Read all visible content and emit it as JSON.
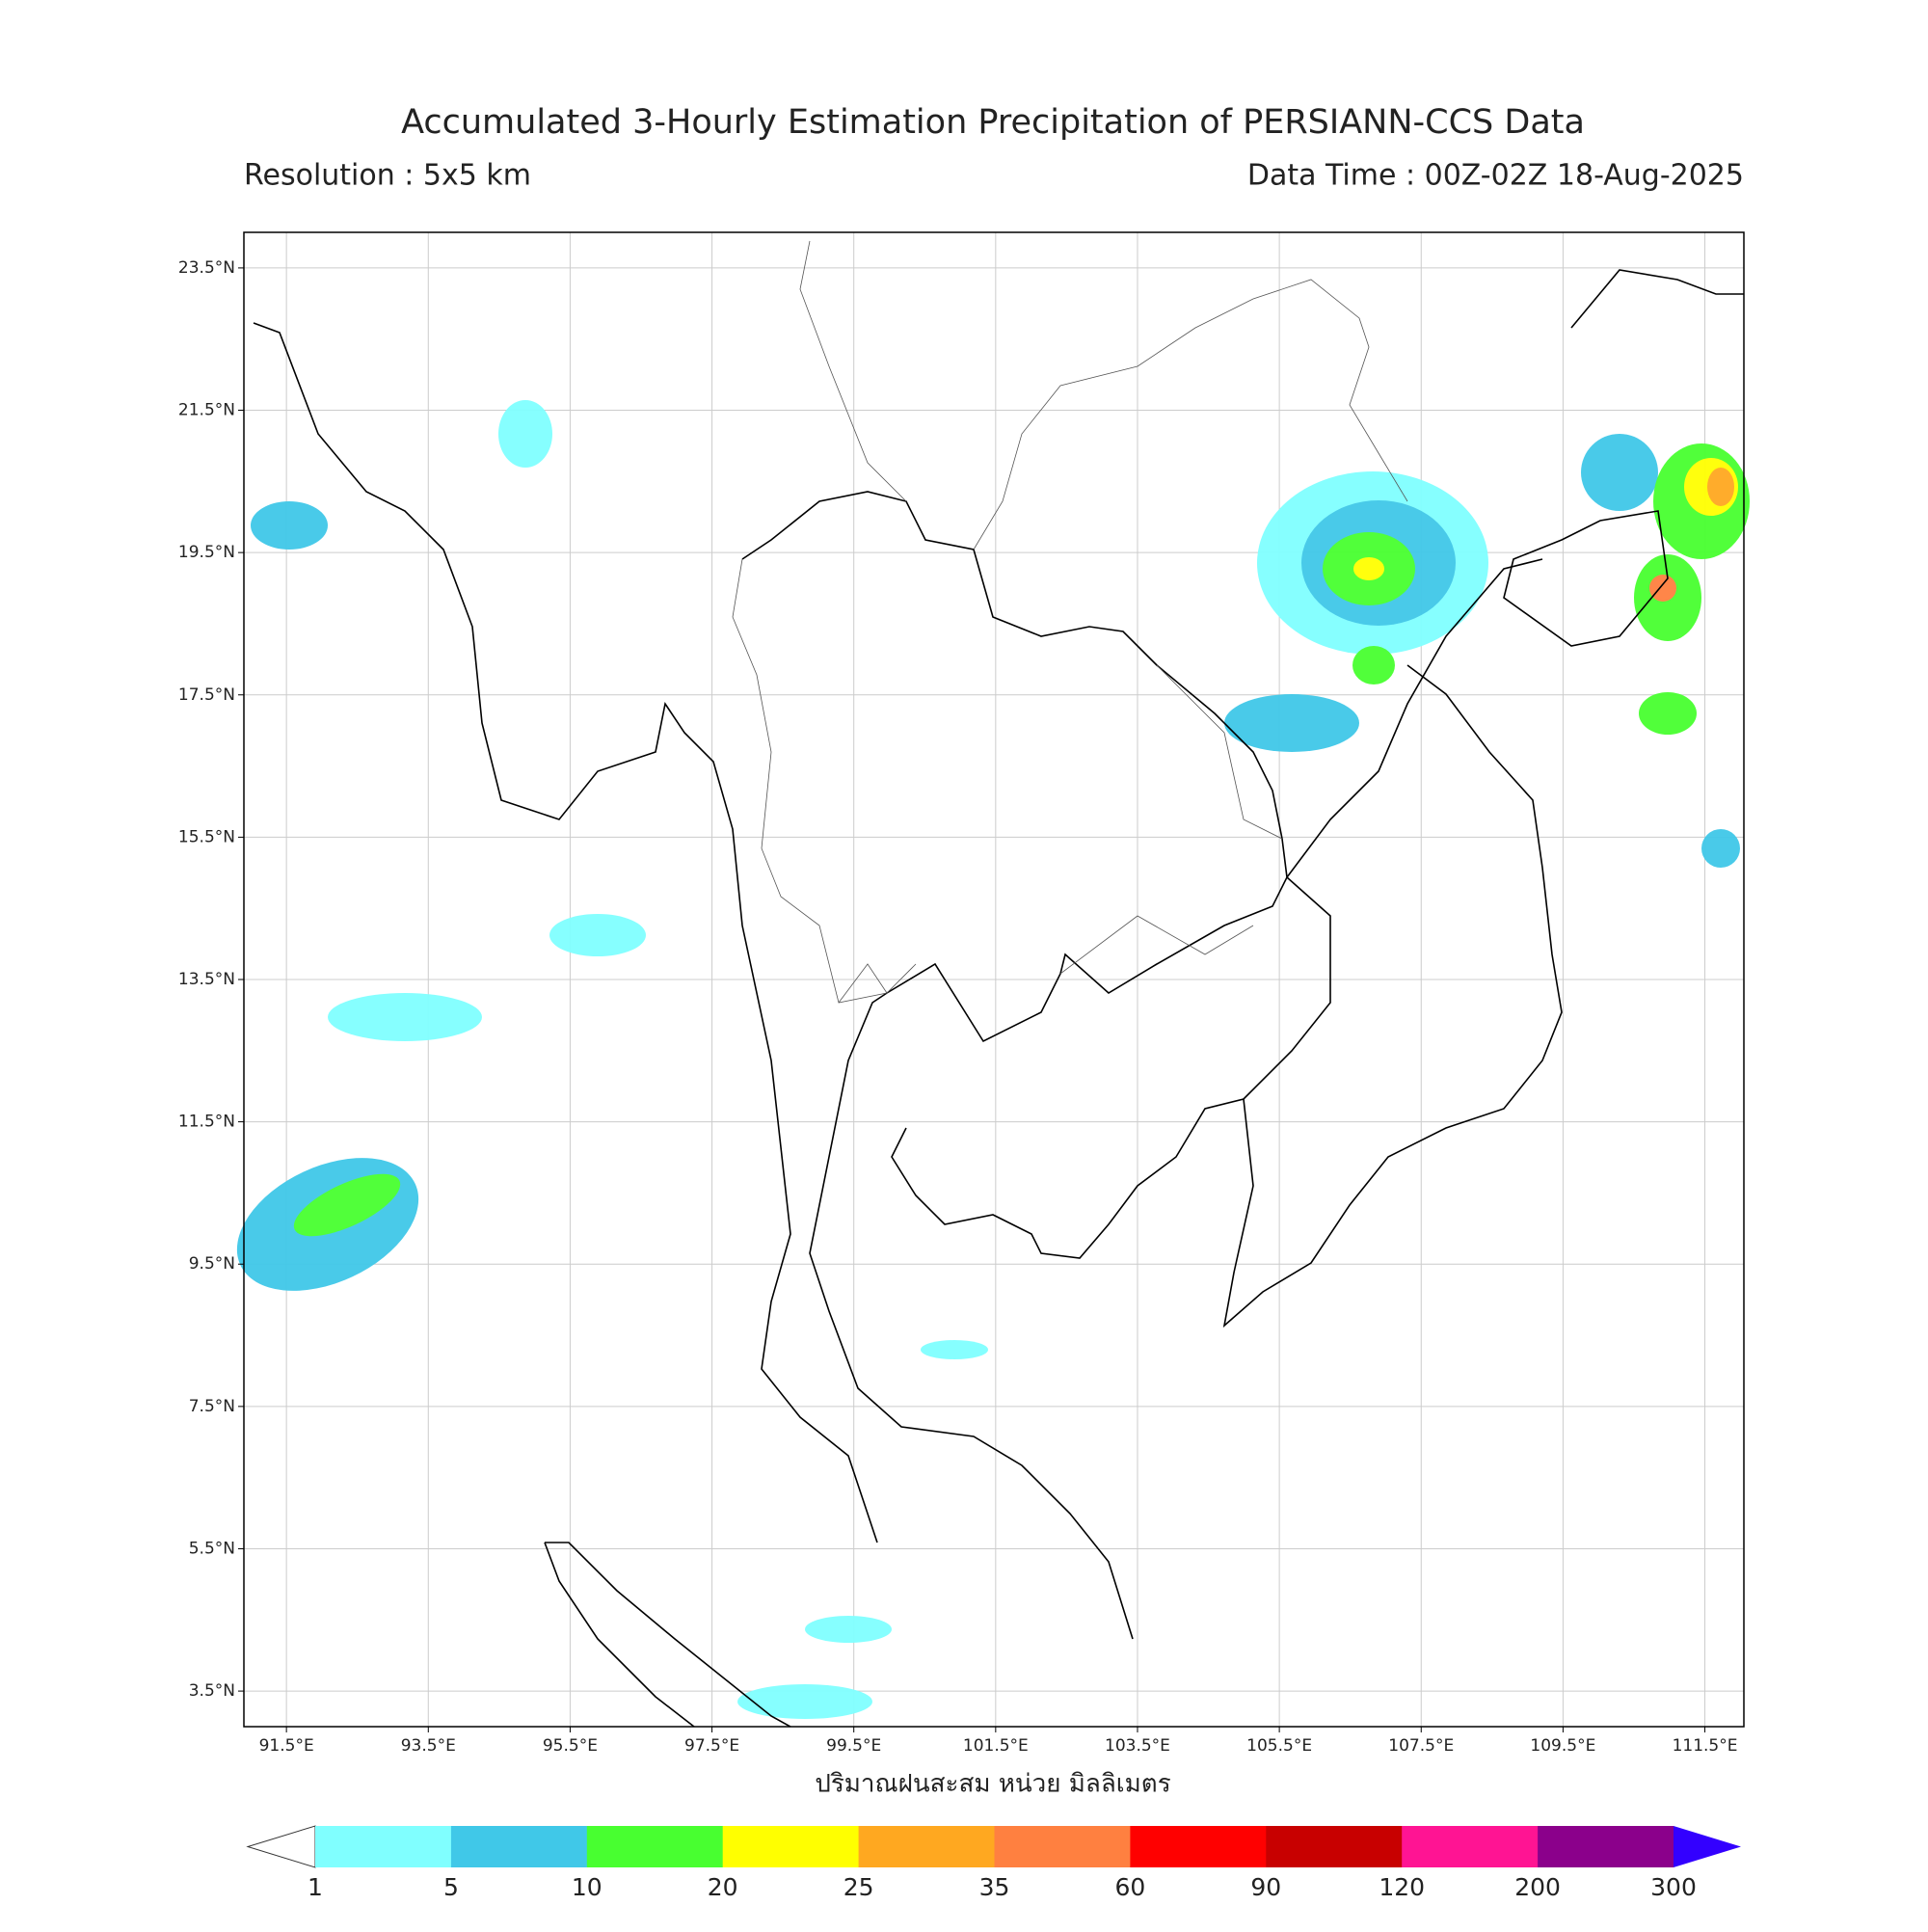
{
  "header": {
    "title": "Accumulated 3-Hourly Estimation Precipitation of PERSIANN-CCS Data",
    "resolution": "Resolution : 5x5 km",
    "data_time": "Data Time : 00Z-02Z 18-Aug-2025"
  },
  "map": {
    "xlim": [
      90.9,
      112.05
    ],
    "ylim": [
      3.0,
      24.0
    ],
    "xticks": [
      {
        "value": 91.5,
        "label": "91.5°E"
      },
      {
        "value": 93.5,
        "label": "93.5°E"
      },
      {
        "value": 95.5,
        "label": "95.5°E"
      },
      {
        "value": 97.5,
        "label": "97.5°E"
      },
      {
        "value": 99.5,
        "label": "99.5°E"
      },
      {
        "value": 101.5,
        "label": "101.5°E"
      },
      {
        "value": 103.5,
        "label": "103.5°E"
      },
      {
        "value": 105.5,
        "label": "105.5°E"
      },
      {
        "value": 107.5,
        "label": "107.5°E"
      },
      {
        "value": 109.5,
        "label": "109.5°E"
      },
      {
        "value": 111.5,
        "label": "111.5°E"
      }
    ],
    "yticks": [
      {
        "value": 23.5,
        "label": "23.5°N"
      },
      {
        "value": 21.5,
        "label": "21.5°N"
      },
      {
        "value": 19.5,
        "label": "19.5°N"
      },
      {
        "value": 17.5,
        "label": "17.5°N"
      },
      {
        "value": 15.5,
        "label": "15.5°N"
      },
      {
        "value": 13.5,
        "label": "13.5°N"
      },
      {
        "value": 11.5,
        "label": "11.5°N"
      },
      {
        "value": 9.5,
        "label": "9.5°N"
      },
      {
        "value": 7.5,
        "label": "7.5°N"
      },
      {
        "value": 5.5,
        "label": "5.5°N"
      },
      {
        "value": 3.5,
        "label": "3.5°N"
      }
    ],
    "grid": true
  },
  "colorbar": {
    "label": "ปริมาณฝนสะสม หน่วย มิลลิเมตร",
    "bounds": [
      1,
      5,
      10,
      20,
      25,
      35,
      60,
      90,
      120,
      200,
      300
    ],
    "colors": [
      "#80ffff",
      "#40c8e8",
      "#48ff30",
      "#ffff00",
      "#ffa820",
      "#ff8040",
      "#ff0000",
      "#c80000",
      "#ff1493",
      "#8b008b"
    ],
    "under_color": "#ffffff",
    "over_color": "#3300ff"
  }
}
